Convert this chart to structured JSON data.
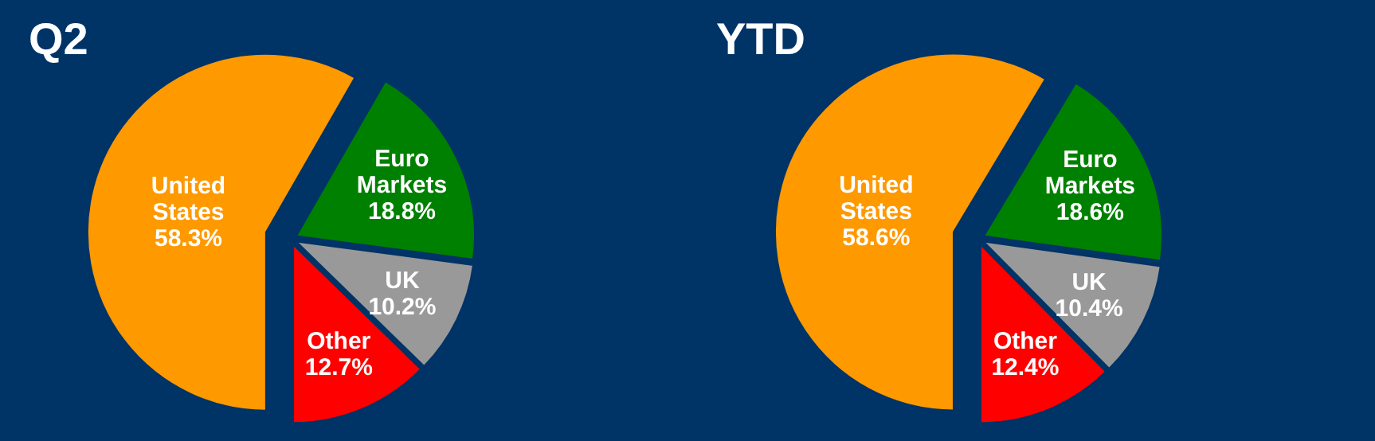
{
  "chart_data": [
    {
      "type": "pie",
      "title": "Q2",
      "categories": [
        "United States",
        "Euro Markets",
        "UK",
        "Other"
      ],
      "values": [
        58.3,
        18.8,
        10.2,
        12.7
      ],
      "value_labels": [
        "58.3%",
        "18.8%",
        "10.2%",
        "12.7%"
      ],
      "colors": [
        "#ff9900",
        "#008000",
        "#999999",
        "#ff0000"
      ]
    },
    {
      "type": "pie",
      "title": "YTD",
      "categories": [
        "United States",
        "Euro Markets",
        "UK",
        "Other"
      ],
      "values": [
        58.6,
        18.6,
        10.4,
        12.4
      ],
      "value_labels": [
        "58.6%",
        "18.6%",
        "10.4%",
        "12.4%"
      ],
      "colors": [
        "#ff9900",
        "#008000",
        "#999999",
        "#ff0000"
      ]
    }
  ]
}
